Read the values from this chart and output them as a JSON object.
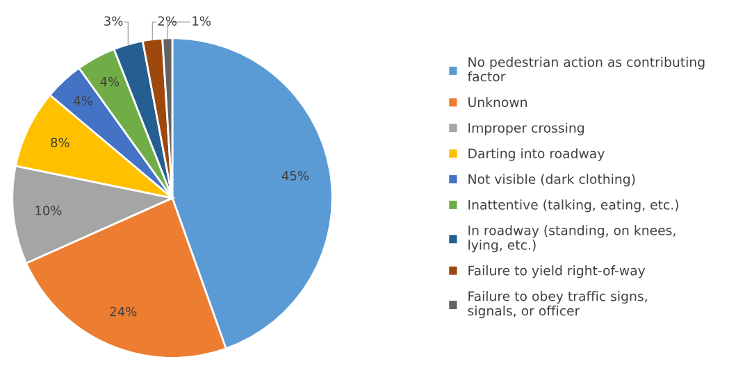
{
  "chart_data": {
    "type": "pie",
    "categories": [
      "No pedestrian action as contributing factor",
      "Unknown",
      "Improper crossing",
      "Darting into roadway",
      "Not visible (dark clothing)",
      "Inattentive (talking, eating, etc.)",
      "In roadway (standing, on knees, lying, etc.)",
      "Failure to yield right-of-way",
      "Failure to obey traffic signs, signals, or officer"
    ],
    "values": [
      45,
      24,
      10,
      8,
      4,
      4,
      3,
      2,
      1
    ],
    "colors": [
      "#5b9bd5",
      "#ed7d31",
      "#a5a5a5",
      "#ffc000",
      "#4472c4",
      "#70ad47",
      "#255e91",
      "#9e480e",
      "#636363"
    ],
    "value_labels": [
      "45%",
      "24%",
      "10%",
      "8%",
      "4%",
      "4%",
      "3%",
      "2%",
      "1%"
    ],
    "legend": "right"
  }
}
